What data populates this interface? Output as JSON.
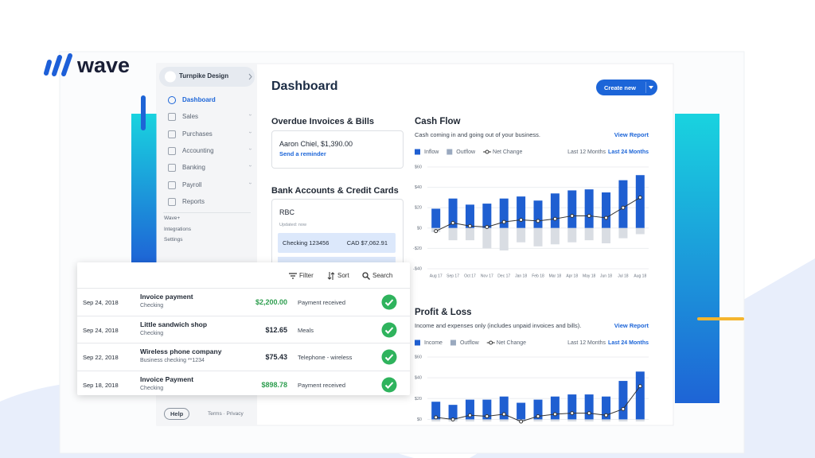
{
  "logo": "wave",
  "sidebar": {
    "business": "Turnpike Design",
    "nav": [
      "Dashboard",
      "Sales",
      "Purchases",
      "Accounting",
      "Banking",
      "Payroll",
      "Reports"
    ],
    "secondary": [
      "Wave+",
      "Integrations",
      "Settings"
    ],
    "help": "Help",
    "legal": "Terms · Privacy"
  },
  "header": {
    "title": "Dashboard",
    "button": "Create new"
  },
  "overdue": {
    "heading": "Overdue Invoices & Bills",
    "item": "Aaron Chiel, $1,390.00",
    "action": "Send a reminder"
  },
  "bank": {
    "heading": "Bank Accounts & Credit Cards",
    "name": "RBC",
    "updated": "Updated: now",
    "account": "Checking 123456",
    "balance": "CAD $7,062.91"
  },
  "transactions": {
    "tools": [
      "Filter",
      "Sort",
      "Search"
    ],
    "rows": [
      {
        "date": "Sep 24, 2018",
        "description": "Invoice payment",
        "account": "Checking",
        "amount": "$2,200.00",
        "category": "Payment received",
        "color": "#2e9e4f"
      },
      {
        "date": "Sep 24, 2018",
        "description": "Little sandwich shop",
        "account": "Checking",
        "amount": "$12.65",
        "category": "Meals",
        "color": "#1f2733"
      },
      {
        "date": "Sep 22, 2018",
        "description": "Wireless phone company",
        "account": "Business checking **1234",
        "amount": "$75.43",
        "category": "Telephone - wireless",
        "color": "#1f2733"
      },
      {
        "date": "Sep 18, 2018",
        "description": "Invoice Payment",
        "account": "Checking",
        "amount": "$898.78",
        "category": "Payment received",
        "color": "#2e9e4f"
      }
    ]
  },
  "chart_data": [
    {
      "type": "bar",
      "title": "Cash Flow",
      "subtitle": "Cash coming in and going out of your business.",
      "link": "View Report",
      "ranges": [
        "Last 12 Months",
        "Last 24 Months"
      ],
      "categories": [
        "Aug 17",
        "Sep 17",
        "Oct 17",
        "Nov 17",
        "Dec 17",
        "Jan 18",
        "Feb 18",
        "Mar 18",
        "Apr 18",
        "May 18",
        "Jun 18",
        "Jul 18",
        "Aug 18"
      ],
      "ylim": [
        -40,
        60
      ],
      "yticks": [
        {
          "value": 60,
          "label": "$60"
        },
        {
          "value": 40,
          "label": "$40"
        },
        {
          "value": 20,
          "label": "$20"
        },
        {
          "value": 0,
          "label": "$0"
        },
        {
          "value": -20,
          "label": "-$20"
        },
        {
          "value": -40,
          "label": "-$40"
        }
      ],
      "grid": true,
      "series": [
        {
          "name": "Inflow",
          "color": "#1f5fd1",
          "values": [
            19,
            29,
            23,
            24,
            29,
            31,
            27,
            34,
            37,
            38,
            35,
            47,
            52
          ]
        },
        {
          "name": "Outflow",
          "color": "#d9dde3",
          "values": [
            -4,
            -12,
            -12,
            -20,
            -22,
            -14,
            -18,
            -16,
            -14,
            -12,
            -15,
            -10,
            -6
          ]
        },
        {
          "name": "Net Change",
          "type": "line",
          "color": "#333333",
          "values": [
            -3,
            5,
            2,
            1,
            6,
            8,
            7,
            9,
            12,
            12,
            10,
            20,
            30
          ]
        }
      ]
    },
    {
      "type": "bar",
      "title": "Profit & Loss",
      "subtitle": "Income and expenses only (includes unpaid invoices and bills).",
      "link": "View Report",
      "ranges": [
        "Last 12 Months",
        "Last 24 Months"
      ],
      "ylim": [
        -5,
        60
      ],
      "yticks": [
        {
          "value": 60,
          "label": "$60"
        },
        {
          "value": 40,
          "label": "$40"
        },
        {
          "value": 20,
          "label": "$20"
        },
        {
          "value": 0,
          "label": "$0"
        }
      ],
      "grid": true,
      "series": [
        {
          "name": "Income",
          "color": "#1f5fd1",
          "values": [
            17,
            14,
            19,
            19,
            22,
            16,
            19,
            22,
            24,
            24,
            22,
            37,
            46
          ]
        },
        {
          "name": "Outflow",
          "color": "#d9dde3",
          "values": [
            -2,
            -2,
            -2,
            -2,
            -2,
            -2,
            -2,
            -2,
            -2,
            -2,
            -2,
            -2,
            -2
          ]
        },
        {
          "name": "Net Change",
          "type": "line",
          "color": "#333333",
          "values": [
            2,
            0,
            4,
            3,
            5,
            -2,
            3,
            5,
            6,
            6,
            4,
            10,
            32
          ]
        }
      ]
    }
  ]
}
